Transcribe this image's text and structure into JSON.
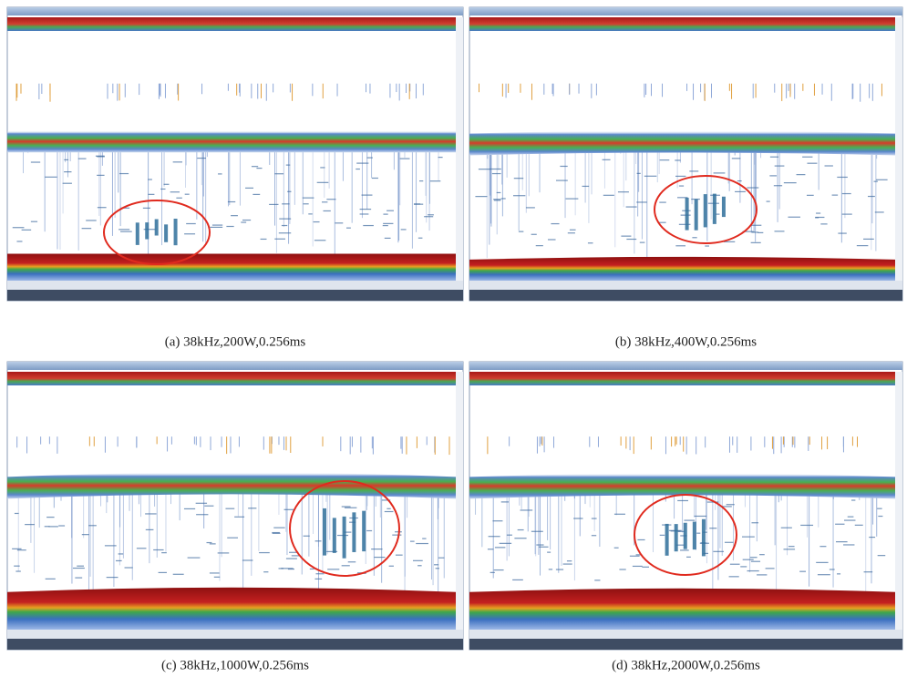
{
  "panels": [
    {
      "caption": "(a) 38kHz,200W,0.256ms"
    },
    {
      "caption": "(b) 38kHz,400W,0.256ms"
    },
    {
      "caption": "(c) 38kHz,1000W,0.256ms"
    },
    {
      "caption": "(d) 38kHz,2000W,0.256ms"
    }
  ]
}
